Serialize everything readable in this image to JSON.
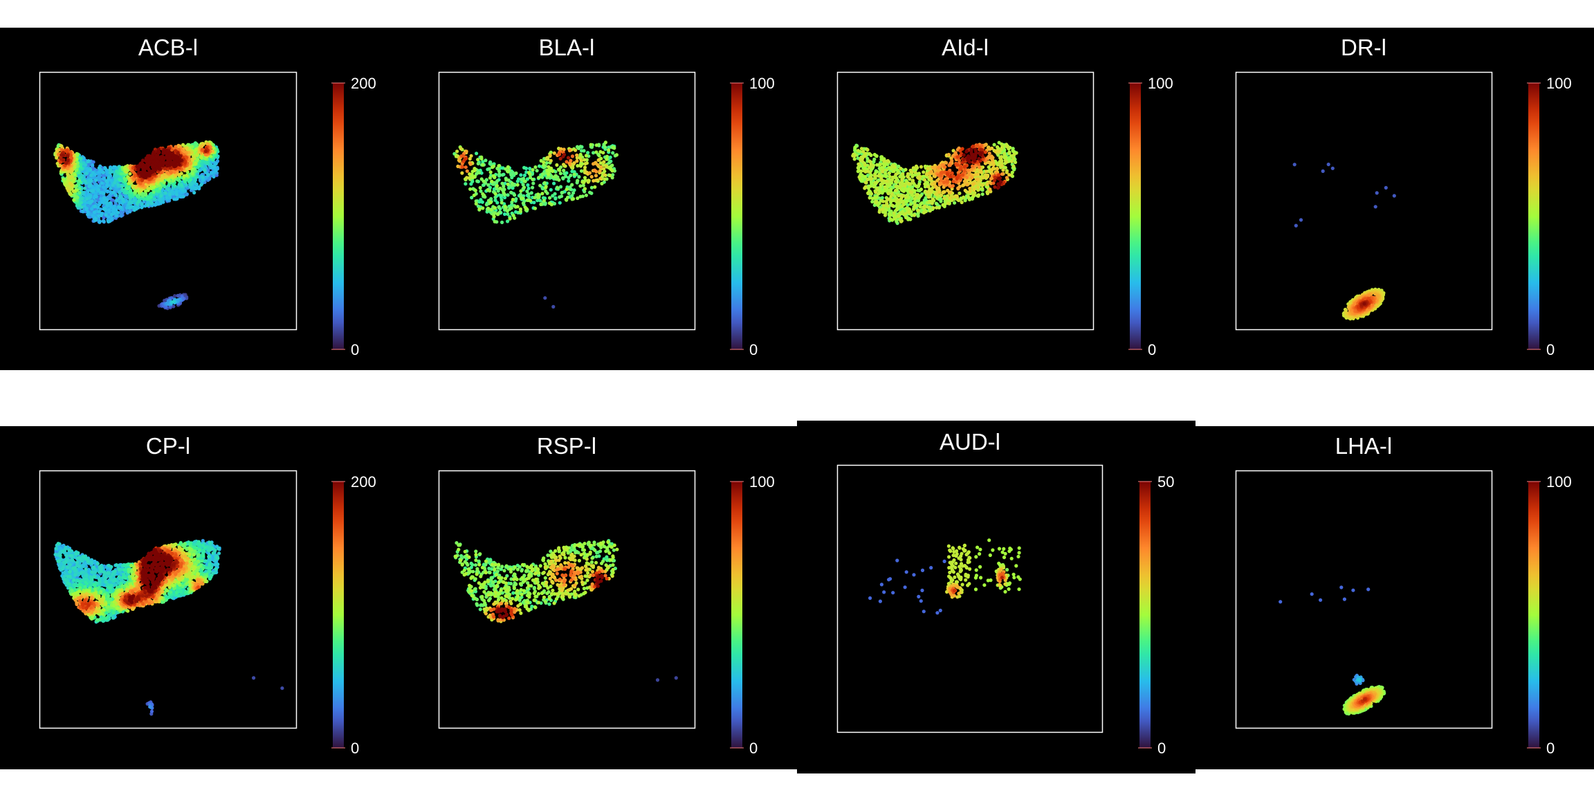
{
  "chart_data": [
    {
      "type": "scatter",
      "title": "ACB-l",
      "colorbar": {
        "min": "0",
        "max": "200",
        "colormap": "turbo"
      },
      "profile": "acb",
      "background": "#000000",
      "frame_color": "#ffffff"
    },
    {
      "type": "scatter",
      "title": "BLA-l",
      "colorbar": {
        "min": "0",
        "max": "100",
        "colormap": "turbo"
      },
      "profile": "bla",
      "background": "#000000",
      "frame_color": "#ffffff"
    },
    {
      "type": "scatter",
      "title": "AId-l",
      "colorbar": {
        "min": "0",
        "max": "100",
        "colormap": "turbo"
      },
      "profile": "aid",
      "background": "#000000",
      "frame_color": "#ffffff"
    },
    {
      "type": "scatter",
      "title": "DR-l",
      "colorbar": {
        "min": "0",
        "max": "100",
        "colormap": "turbo"
      },
      "profile": "dr",
      "background": "#000000",
      "frame_color": "#ffffff"
    },
    {
      "type": "scatter",
      "title": "CP-l",
      "colorbar": {
        "min": "0",
        "max": "200",
        "colormap": "turbo"
      },
      "profile": "cp",
      "background": "#000000",
      "frame_color": "#ffffff"
    },
    {
      "type": "scatter",
      "title": "RSP-l",
      "colorbar": {
        "min": "0",
        "max": "100",
        "colormap": "turbo"
      },
      "profile": "rsp",
      "background": "#000000",
      "frame_color": "#ffffff"
    },
    {
      "type": "scatter",
      "title": "AUD-l",
      "colorbar": {
        "min": "0",
        "max": "50",
        "colormap": "turbo"
      },
      "profile": "aud",
      "background": "#000000",
      "frame_color": "#ffffff"
    },
    {
      "type": "scatter",
      "title": "LHA-l",
      "colorbar": {
        "min": "0",
        "max": "100",
        "colormap": "turbo"
      },
      "profile": "lha",
      "background": "#000000",
      "frame_color": "#ffffff"
    }
  ]
}
